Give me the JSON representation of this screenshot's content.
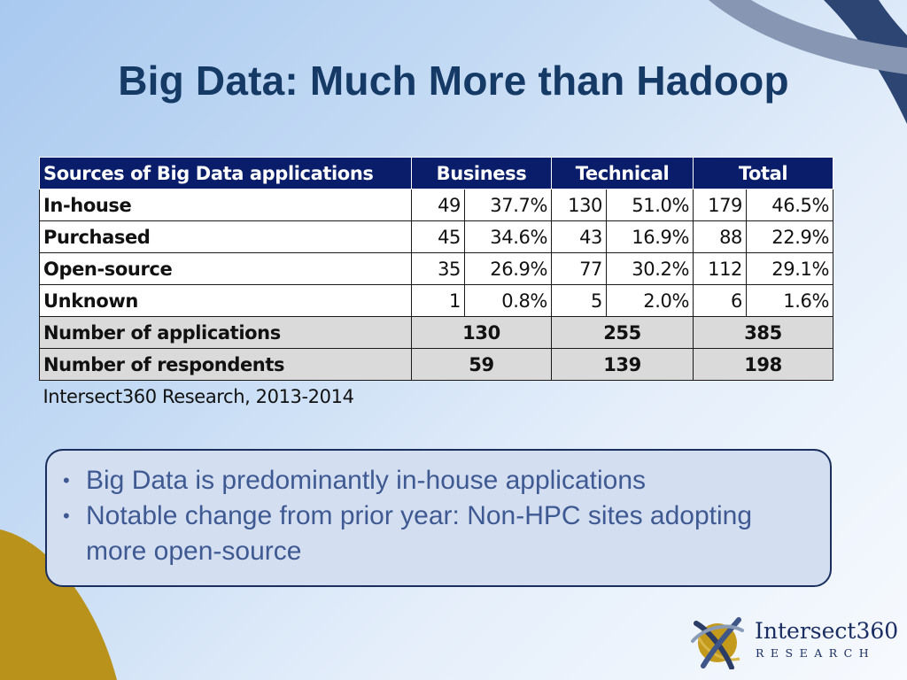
{
  "slide": {
    "title": "Big Data: Much More than Hadoop"
  },
  "table": {
    "headers": {
      "sources": "Sources of Big Data applications",
      "business": "Business",
      "technical": "Technical",
      "total": "Total"
    },
    "rows": [
      {
        "label": "In-house",
        "business_n": "49",
        "business_pct": "37.7%",
        "technical_n": "130",
        "technical_pct": "51.0%",
        "total_n": "179",
        "total_pct": "46.5%"
      },
      {
        "label": "Purchased",
        "business_n": "45",
        "business_pct": "34.6%",
        "technical_n": "43",
        "technical_pct": "16.9%",
        "total_n": "88",
        "total_pct": "22.9%"
      },
      {
        "label": "Open-source",
        "business_n": "35",
        "business_pct": "26.9%",
        "technical_n": "77",
        "technical_pct": "30.2%",
        "total_n": "112",
        "total_pct": "29.1%"
      },
      {
        "label": "Unknown",
        "business_n": "1",
        "business_pct": "0.8%",
        "technical_n": "5",
        "technical_pct": "2.0%",
        "total_n": "6",
        "total_pct": "1.6%"
      }
    ],
    "totals": [
      {
        "label": "Number of applications",
        "business": "130",
        "technical": "255",
        "total": "385"
      },
      {
        "label": "Number of respondents",
        "business": "59",
        "technical": "139",
        "total": "198"
      }
    ],
    "source": "Intersect360 Research, 2013-2014"
  },
  "bullets": [
    "Big Data is predominantly in-house applications",
    "Notable change from prior year: Non-HPC sites adopting more open-source"
  ],
  "logo": {
    "name": "Intersect360",
    "sub": "RESEARCH"
  },
  "colors": {
    "title": "#163a66",
    "table_header": "#0a1d6a",
    "total_row": "#dadada",
    "bullet_text": "#3f5a92",
    "gold_accent": "#b8921a",
    "navy_accent": "#2c4572"
  }
}
